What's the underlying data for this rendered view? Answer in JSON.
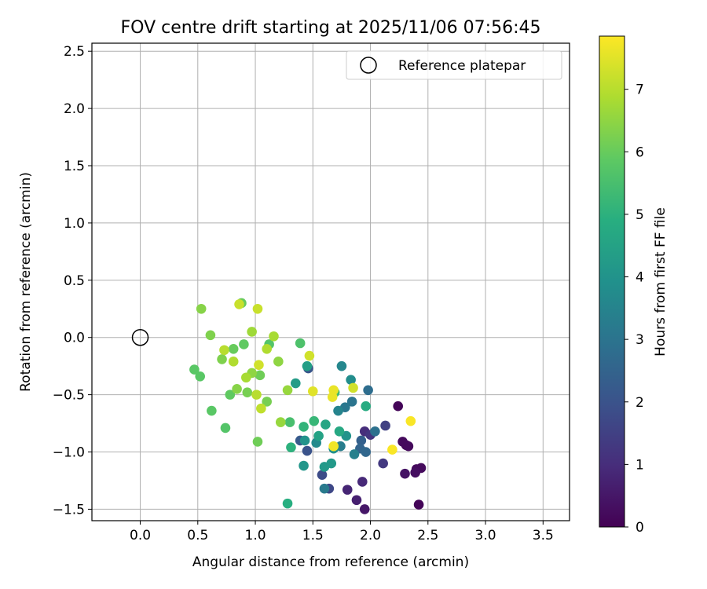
{
  "chart_data": {
    "type": "scatter",
    "title": "FOV centre drift starting at 2025/11/06 07:56:45",
    "xlabel": "Angular distance from reference (arcmin)",
    "ylabel": "Rotation from reference (arcmin)",
    "xlim": [
      -0.42,
      3.73
    ],
    "ylim": [
      -1.6,
      2.57
    ],
    "xticks": [
      0.0,
      0.5,
      1.0,
      1.5,
      2.0,
      2.5,
      3.0,
      3.5
    ],
    "xtick_labels": [
      "0.0",
      "0.5",
      "1.0",
      "1.5",
      "2.0",
      "2.5",
      "3.0",
      "3.5"
    ],
    "yticks": [
      -1.5,
      -1.0,
      -0.5,
      0.0,
      0.5,
      1.0,
      1.5,
      2.0,
      2.5
    ],
    "ytick_labels": [
      "−1.5",
      "−1.0",
      "−0.5",
      "0.0",
      "0.5",
      "1.0",
      "1.5",
      "2.0",
      "2.5"
    ],
    "grid": true,
    "legend": {
      "position": "upper-right",
      "entries": [
        "Reference platepar"
      ]
    },
    "reference_point": {
      "x": 0.0,
      "y": 0.0,
      "label": "Reference platepar"
    },
    "colorbar": {
      "label": "Hours from first FF file",
      "colormap": "viridis",
      "range": [
        0,
        7.85
      ],
      "ticks": [
        0,
        1,
        2,
        3,
        4,
        5,
        6,
        7
      ],
      "tick_labels": [
        "0",
        "1",
        "2",
        "3",
        "4",
        "5",
        "6",
        "7"
      ]
    },
    "series": [
      {
        "name": "FOV centre",
        "points": [
          [
            2.42,
            -1.46,
            0.1
          ],
          [
            2.24,
            -0.6,
            0.1
          ],
          [
            2.31,
            -0.94,
            0.1
          ],
          [
            2.33,
            -0.95,
            0.2
          ],
          [
            2.28,
            -0.91,
            0.2
          ],
          [
            2.4,
            -1.15,
            0.2
          ],
          [
            2.44,
            -1.14,
            0.2
          ],
          [
            2.39,
            -1.18,
            0.3
          ],
          [
            2.3,
            -1.19,
            0.4
          ],
          [
            1.95,
            -1.5,
            0.5
          ],
          [
            1.88,
            -1.42,
            0.7
          ],
          [
            1.8,
            -1.33,
            0.8
          ],
          [
            1.93,
            -1.26,
            0.9
          ],
          [
            1.95,
            -0.82,
            1.0
          ],
          [
            2.0,
            -0.85,
            1.2
          ],
          [
            2.11,
            -1.1,
            1.3
          ],
          [
            2.13,
            -0.77,
            1.5
          ],
          [
            1.64,
            -1.32,
            1.7
          ],
          [
            1.58,
            -1.2,
            1.8
          ],
          [
            1.45,
            -0.99,
            2.0
          ],
          [
            1.46,
            -0.27,
            2.1
          ],
          [
            1.39,
            -0.9,
            2.2
          ],
          [
            1.92,
            -0.9,
            2.4
          ],
          [
            1.91,
            -0.97,
            2.5
          ],
          [
            1.96,
            -1.0,
            2.6
          ],
          [
            1.98,
            -0.46,
            2.8
          ],
          [
            2.04,
            -0.82,
            2.9
          ],
          [
            1.84,
            -0.56,
            3.0
          ],
          [
            1.78,
            -0.61,
            3.1
          ],
          [
            1.6,
            -1.32,
            3.2
          ],
          [
            1.74,
            -0.95,
            3.3
          ],
          [
            1.86,
            -1.02,
            3.4
          ],
          [
            1.72,
            -0.64,
            3.5
          ],
          [
            1.75,
            -0.25,
            3.6
          ],
          [
            1.53,
            -0.92,
            3.7
          ],
          [
            1.83,
            -0.37,
            3.8
          ],
          [
            1.68,
            -0.97,
            3.9
          ],
          [
            1.79,
            -0.86,
            4.0
          ],
          [
            1.42,
            -1.12,
            4.1
          ],
          [
            1.66,
            -1.1,
            4.2
          ],
          [
            1.6,
            -1.13,
            4.2
          ],
          [
            1.35,
            -0.4,
            4.3
          ],
          [
            1.45,
            -0.25,
            4.4
          ],
          [
            1.55,
            -0.86,
            4.5
          ],
          [
            1.61,
            -0.76,
            4.6
          ],
          [
            1.73,
            -0.82,
            4.7
          ],
          [
            1.96,
            -0.6,
            4.8
          ],
          [
            1.28,
            -1.45,
            4.9
          ],
          [
            1.31,
            -0.96,
            5.0
          ],
          [
            1.42,
            -0.78,
            5.1
          ],
          [
            1.51,
            -0.73,
            5.2
          ],
          [
            1.69,
            -0.48,
            5.3
          ],
          [
            1.3,
            -0.74,
            5.5
          ],
          [
            1.39,
            -0.05,
            5.6
          ],
          [
            1.12,
            -0.06,
            5.7
          ],
          [
            0.74,
            -0.79,
            5.7
          ],
          [
            0.62,
            -0.64,
            5.8
          ],
          [
            0.47,
            -0.28,
            5.8
          ],
          [
            0.52,
            -0.34,
            5.8
          ],
          [
            0.9,
            -0.06,
            5.9
          ],
          [
            0.78,
            -0.5,
            5.9
          ],
          [
            0.81,
            -0.1,
            6.0
          ],
          [
            0.88,
            0.3,
            6.0
          ],
          [
            1.02,
            -0.91,
            6.1
          ],
          [
            1.04,
            -0.33,
            6.1
          ],
          [
            0.93,
            -0.48,
            6.2
          ],
          [
            1.1,
            -0.56,
            6.2
          ],
          [
            0.71,
            -0.19,
            6.3
          ],
          [
            0.61,
            0.02,
            6.3
          ],
          [
            0.53,
            0.25,
            6.4
          ],
          [
            0.84,
            -0.45,
            6.4
          ],
          [
            0.97,
            -0.31,
            6.5
          ],
          [
            1.2,
            -0.21,
            6.5
          ],
          [
            1.22,
            -0.74,
            6.6
          ],
          [
            1.28,
            -0.46,
            6.6
          ],
          [
            0.97,
            0.05,
            6.7
          ],
          [
            1.16,
            0.01,
            6.8
          ],
          [
            0.81,
            -0.21,
            6.9
          ],
          [
            1.01,
            -0.5,
            7.0
          ],
          [
            1.05,
            -0.62,
            7.1
          ],
          [
            0.86,
            0.29,
            7.2
          ],
          [
            1.02,
            0.25,
            7.2
          ],
          [
            1.03,
            -0.24,
            7.3
          ],
          [
            1.47,
            -0.16,
            7.3
          ],
          [
            1.5,
            -0.47,
            7.5
          ],
          [
            1.68,
            -0.46,
            7.6
          ],
          [
            1.68,
            -0.95,
            7.7
          ],
          [
            2.19,
            -0.98,
            7.8
          ],
          [
            2.35,
            -0.73,
            7.8
          ],
          [
            1.85,
            -0.44,
            7.3
          ],
          [
            1.67,
            -0.52,
            7.6
          ],
          [
            0.92,
            -0.35,
            6.8
          ],
          [
            0.73,
            -0.11,
            7.0
          ],
          [
            1.1,
            -0.1,
            6.9
          ],
          [
            1.43,
            -0.9,
            4.0
          ]
        ]
      }
    ]
  }
}
